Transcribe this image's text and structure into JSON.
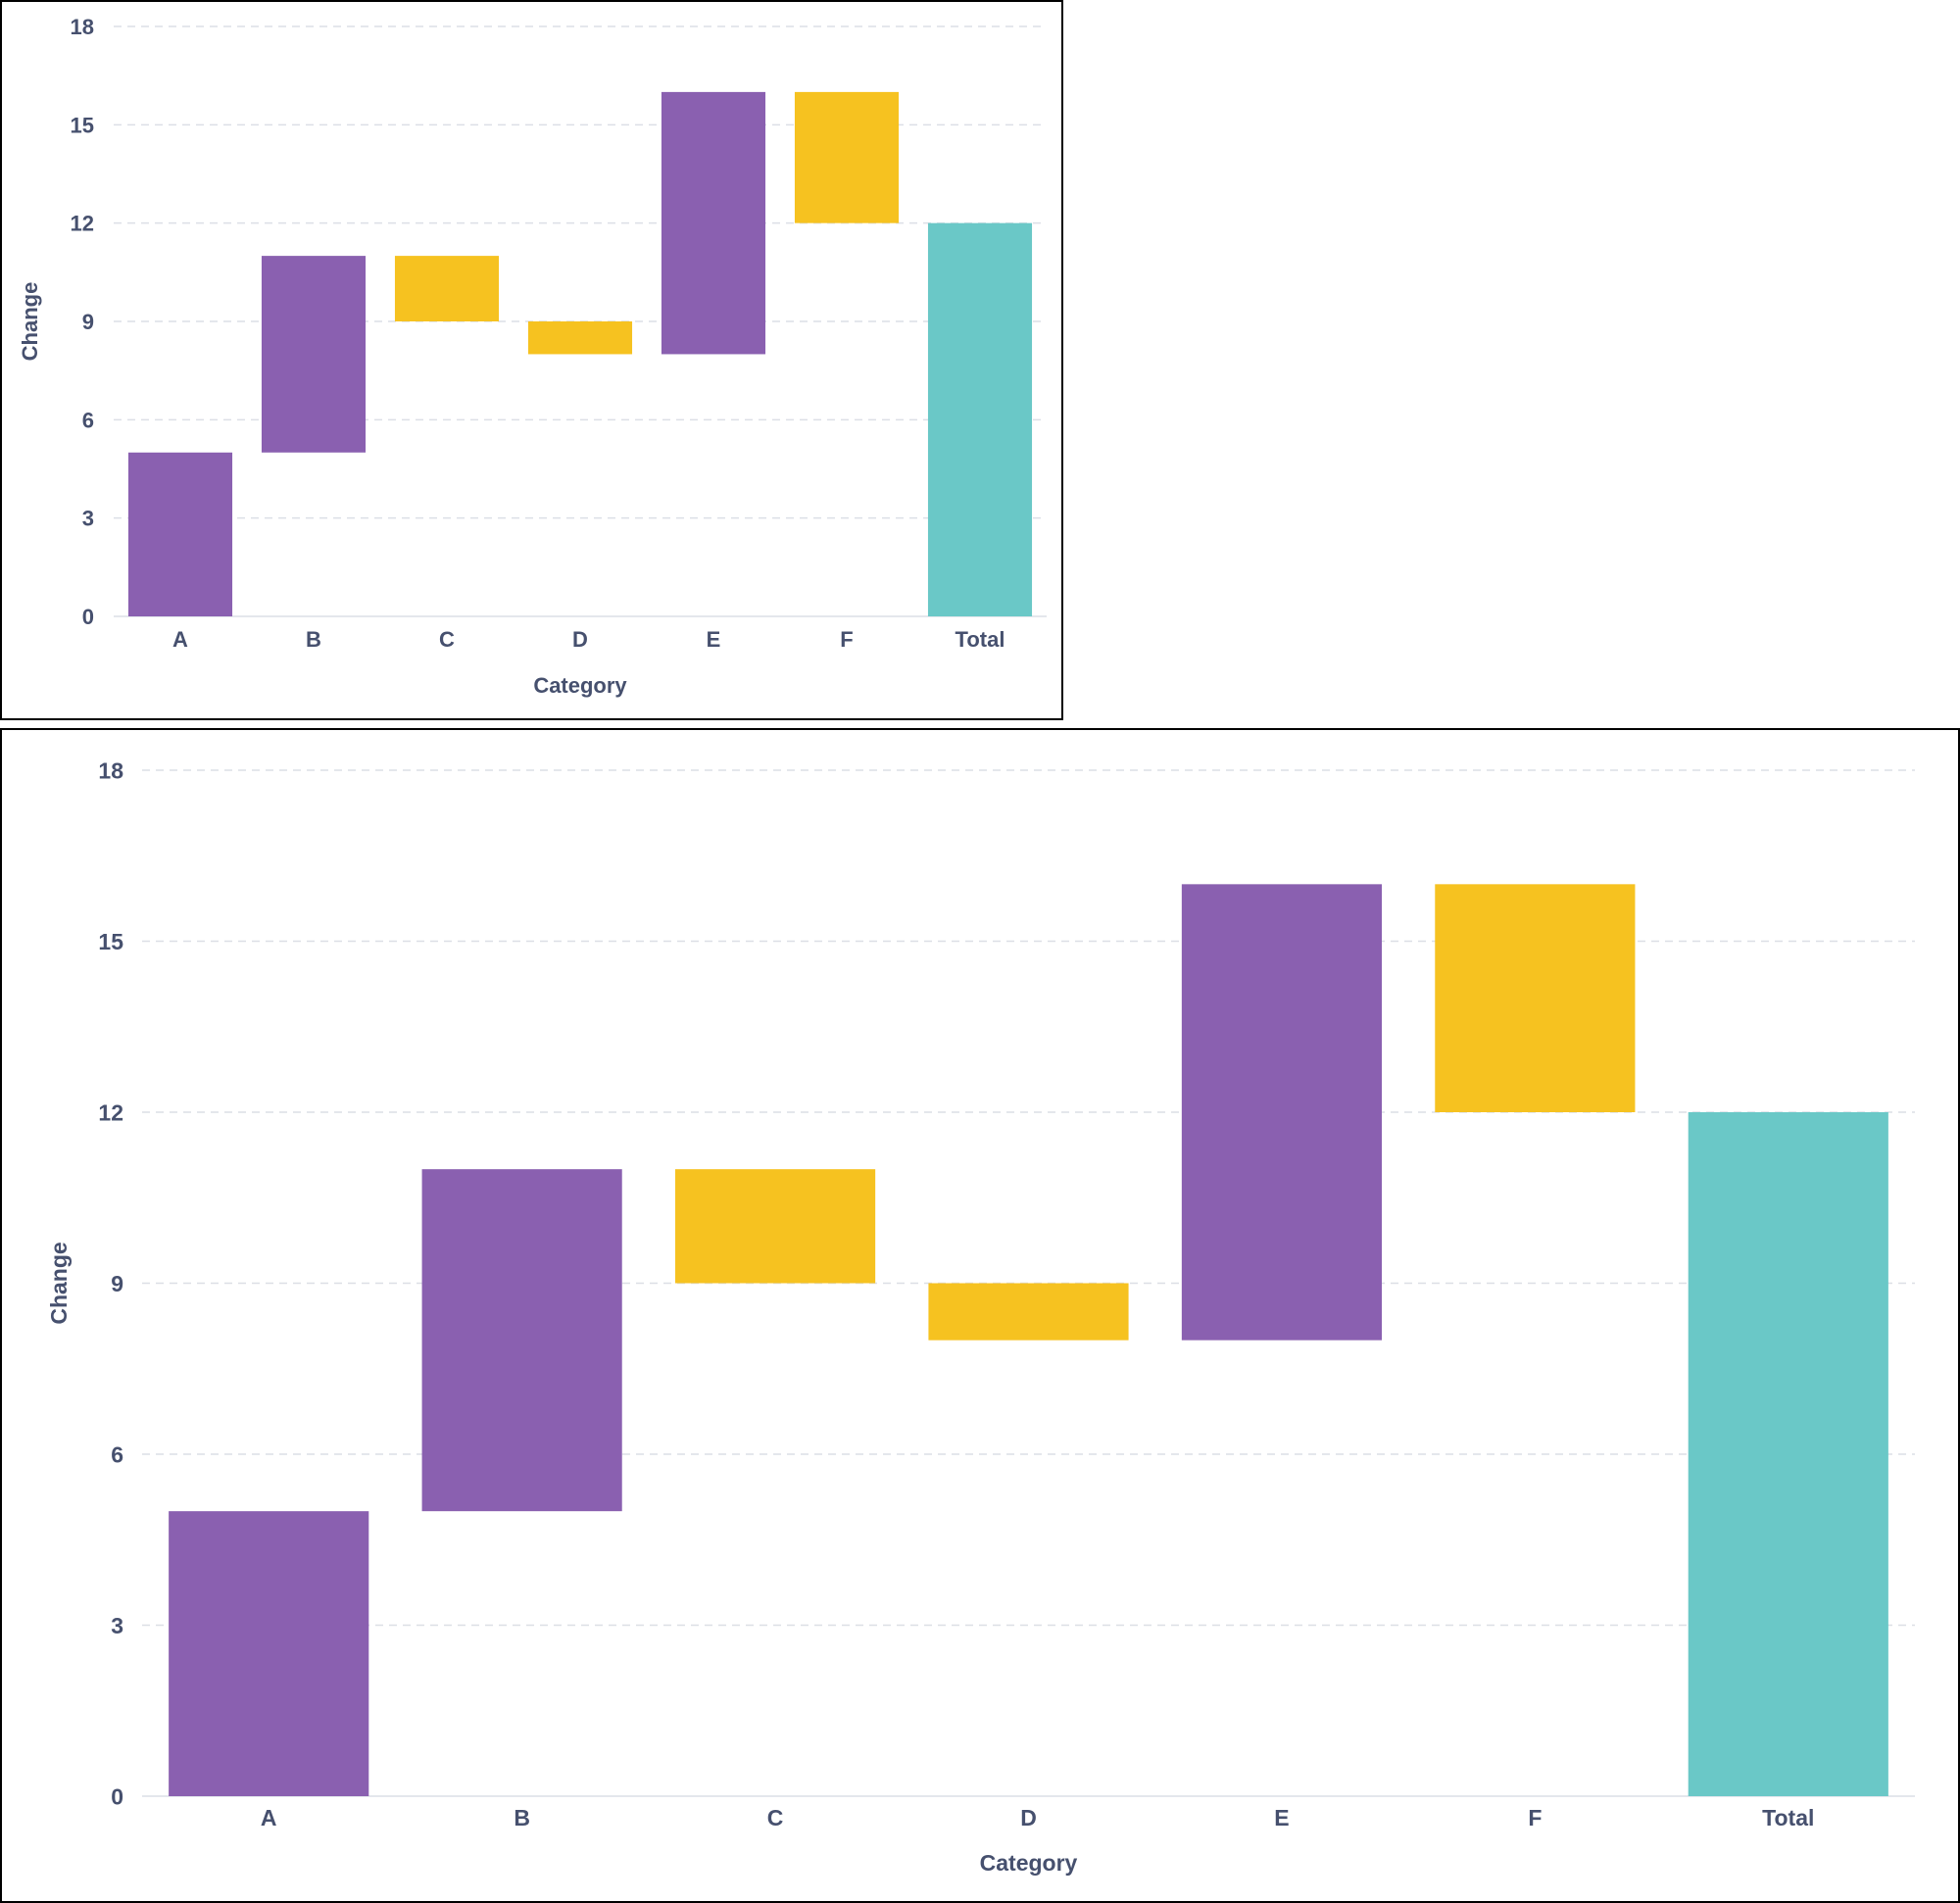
{
  "colors": {
    "increase": "#8a60b0",
    "decrease": "#f6c220",
    "total": "#6ac8c7",
    "text": "#46506e",
    "grid": "#dcdfe6"
  },
  "chart_data": [
    {
      "type": "bar",
      "variant": "waterfall",
      "categories": [
        "A",
        "B",
        "C",
        "D",
        "E",
        "F",
        "Total"
      ],
      "bars": [
        {
          "category": "A",
          "start": 0,
          "end": 5,
          "kind": "increase"
        },
        {
          "category": "B",
          "start": 5,
          "end": 11,
          "kind": "increase"
        },
        {
          "category": "C",
          "start": 11,
          "end": 9,
          "kind": "decrease"
        },
        {
          "category": "D",
          "start": 9,
          "end": 8,
          "kind": "decrease"
        },
        {
          "category": "E",
          "start": 8,
          "end": 16,
          "kind": "increase"
        },
        {
          "category": "F",
          "start": 16,
          "end": 12,
          "kind": "decrease"
        },
        {
          "category": "Total",
          "start": 0,
          "end": 12,
          "kind": "total"
        }
      ],
      "title": "",
      "xlabel": "Category",
      "ylabel": "Change",
      "ylim": [
        0,
        18
      ],
      "yticks": [
        "0",
        "3",
        "6",
        "9",
        "12",
        "15",
        "18"
      ],
      "grid": true
    },
    {
      "type": "bar",
      "variant": "waterfall",
      "categories": [
        "A",
        "B",
        "C",
        "D",
        "E",
        "F",
        "Total"
      ],
      "bars": [
        {
          "category": "A",
          "start": 0,
          "end": 5,
          "kind": "increase"
        },
        {
          "category": "B",
          "start": 5,
          "end": 11,
          "kind": "increase"
        },
        {
          "category": "C",
          "start": 11,
          "end": 9,
          "kind": "decrease"
        },
        {
          "category": "D",
          "start": 9,
          "end": 8,
          "kind": "decrease"
        },
        {
          "category": "E",
          "start": 8,
          "end": 16,
          "kind": "increase"
        },
        {
          "category": "F",
          "start": 16,
          "end": 12,
          "kind": "decrease"
        },
        {
          "category": "Total",
          "start": 0,
          "end": 12,
          "kind": "total"
        }
      ],
      "title": "",
      "xlabel": "Category",
      "ylabel": "Change",
      "ylim": [
        0,
        18
      ],
      "yticks": [
        "0",
        "3",
        "6",
        "9",
        "12",
        "15",
        "18"
      ],
      "grid": true
    }
  ]
}
